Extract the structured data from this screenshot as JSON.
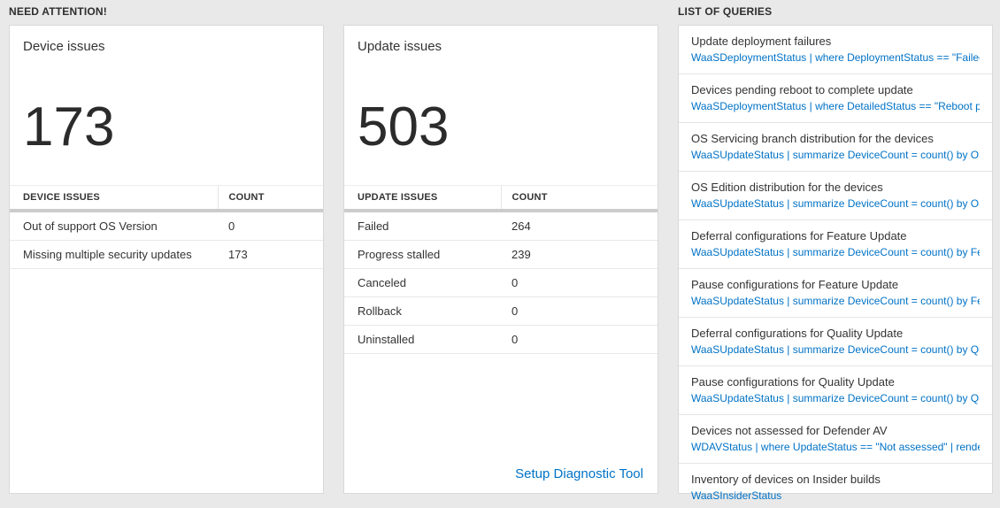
{
  "colors": {
    "page_bg": "#e9e9e9",
    "card_bg": "#ffffff",
    "link_blue": "#0072c6",
    "text_dark": "#333333",
    "separator_thick": "#cccccc"
  },
  "need_attention": {
    "title": "NEED ATTENTION!",
    "device_card": {
      "title": "Device issues",
      "big_number": "173",
      "headers": {
        "label": "DEVICE ISSUES",
        "count": "COUNT"
      },
      "rows": [
        {
          "label": "Out of support OS Version",
          "count": "0"
        },
        {
          "label": "Missing multiple security updates",
          "count": "173"
        }
      ]
    },
    "update_card": {
      "title": "Update issues",
      "big_number": "503",
      "headers": {
        "label": "UPDATE ISSUES",
        "count": "COUNT"
      },
      "rows": [
        {
          "label": "Failed",
          "count": "264"
        },
        {
          "label": "Progress stalled",
          "count": "239"
        },
        {
          "label": "Canceled",
          "count": "0"
        },
        {
          "label": "Rollback",
          "count": "0"
        },
        {
          "label": "Uninstalled",
          "count": "0"
        }
      ],
      "footer_link": "Setup Diagnostic Tool"
    }
  },
  "queries": {
    "title": "LIST OF QUERIES",
    "items": [
      {
        "title": "Update deployment failures",
        "query": "WaaSDeploymentStatus | where DeploymentStatus == \"Failed\" |..."
      },
      {
        "title": "Devices pending reboot to complete update",
        "query": "WaaSDeploymentStatus | where DetailedStatus == \"Reboot pend..."
      },
      {
        "title": "OS Servicing branch distribution for the devices",
        "query": "WaaSUpdateStatus | summarize DeviceCount = count() by OSSer..."
      },
      {
        "title": "OS Edition distribution for the devices",
        "query": "WaaSUpdateStatus | summarize DeviceCount = count() by OSEdit..."
      },
      {
        "title": "Deferral configurations for Feature Update",
        "query": "WaaSUpdateStatus | summarize DeviceCount = count() by Featur..."
      },
      {
        "title": "Pause configurations for Feature Update",
        "query": "WaaSUpdateStatus | summarize DeviceCount = count() by Featur..."
      },
      {
        "title": "Deferral configurations for Quality Update",
        "query": "WaaSUpdateStatus | summarize DeviceCount = count() by Qualit..."
      },
      {
        "title": "Pause configurations for Quality Update",
        "query": "WaaSUpdateStatus | summarize DeviceCount = count() by Qualit..."
      },
      {
        "title": "Devices not assessed for Defender AV",
        "query": "WDAVStatus | where UpdateStatus == \"Not assessed\" | render ta..."
      },
      {
        "title": "Inventory of devices on Insider builds",
        "query": "WaaSInsiderStatus"
      }
    ]
  }
}
